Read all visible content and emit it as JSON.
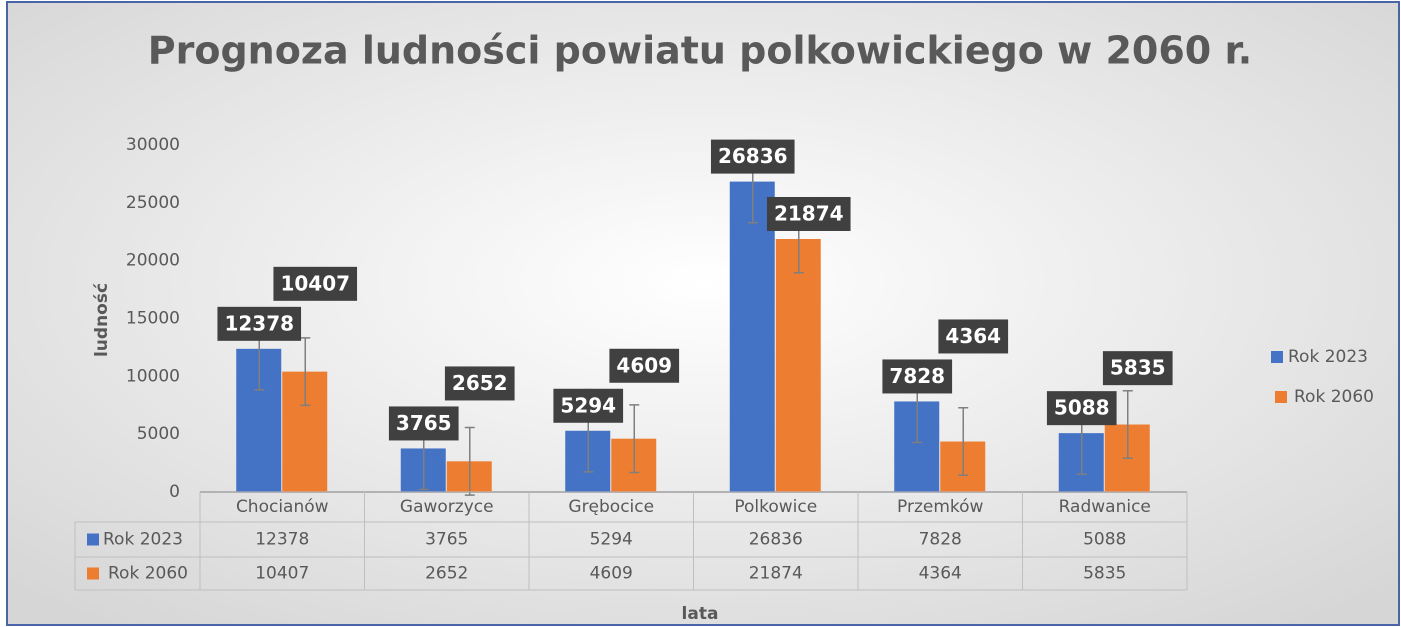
{
  "chart_data": {
    "type": "bar",
    "title": "Prognoza ludności powiatu polkowickiego w 2060 r.",
    "ylabel": "ludność",
    "xlabel": "lata",
    "categories": [
      "Chocianów",
      "Gaworzyce",
      "Grębocice",
      "Polkowice",
      "Przemków",
      "Radwanice"
    ],
    "series": [
      {
        "name": "Rok 2023",
        "color": "#4472c4",
        "values": [
          12378,
          3765,
          5294,
          26836,
          7828,
          5088
        ],
        "errors": [
          3553,
          3553,
          3553,
          3553,
          3553,
          3553
        ]
      },
      {
        "name": "Rok 2060",
        "color": "#ed7d31",
        "values": [
          10407,
          2652,
          4609,
          21874,
          4364,
          5835
        ],
        "errors": [
          2920,
          2920,
          2920,
          2920,
          2920,
          2920
        ]
      }
    ],
    "ylim": [
      0,
      30000
    ],
    "yticks": [
      0,
      5000,
      10000,
      15000,
      20000,
      25000,
      30000
    ],
    "grid": false,
    "legend": "right"
  }
}
